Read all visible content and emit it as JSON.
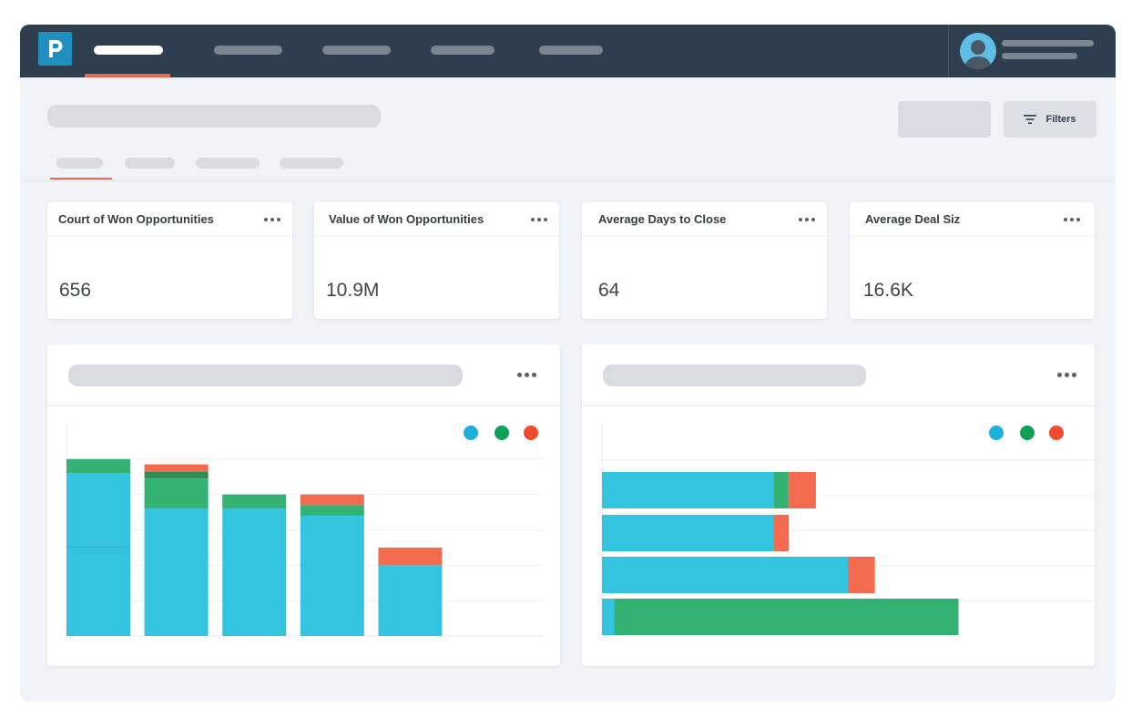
{
  "app": {
    "brand_letter": "P",
    "nav": [
      "",
      "",
      "",
      "",
      ""
    ],
    "user": {
      "avatar": "user-avatar"
    }
  },
  "toolbar": {
    "filters_label": "Filters"
  },
  "kpis": [
    {
      "title": "Court of Won Opportunities",
      "value": "656"
    },
    {
      "title": "Value of Won Opportunities",
      "value": "10.9M"
    },
    {
      "title": "Average Days to Close",
      "value": "64"
    },
    {
      "title": "Average Deal Siz",
      "value": "16.6K"
    }
  ],
  "colors": {
    "cyan": "#33c5e0",
    "green": "#34b274",
    "red": "#f36b4f",
    "dark_green": "#2e8f55",
    "accent": "#f0674f"
  },
  "chart_data": [
    {
      "type": "bar",
      "orientation": "vertical",
      "stacked": true,
      "categories": [
        "",
        "",
        "",
        "",
        ""
      ],
      "series": [
        {
          "color": "#33c5e0",
          "values": [
            4.6,
            3.6,
            3.6,
            3.4,
            2.0
          ]
        },
        {
          "color": "#34b274",
          "values": [
            0.4,
            0.85,
            0.4,
            0.3,
            0
          ]
        },
        {
          "color": "#f36b4f",
          "values": [
            0,
            0.4,
            0,
            0.3,
            0.5
          ]
        }
      ],
      "ylim": [
        0,
        6
      ],
      "grid": true,
      "legend_placement": "top-right"
    },
    {
      "type": "bar",
      "orientation": "horizontal",
      "stacked": true,
      "categories": [
        "",
        "",
        "",
        ""
      ],
      "series": [
        {
          "color": "#33c5e0",
          "values": [
            3.5,
            3.5,
            5.0,
            0.25
          ]
        },
        {
          "color": "#34b274",
          "values": [
            0.3,
            0,
            0,
            7.0
          ]
        },
        {
          "color": "#f36b4f",
          "values": [
            0.55,
            0.3,
            0.55,
            0
          ]
        }
      ],
      "xlim": [
        0,
        10
      ],
      "grid": true,
      "legend_placement": "top-right"
    }
  ]
}
